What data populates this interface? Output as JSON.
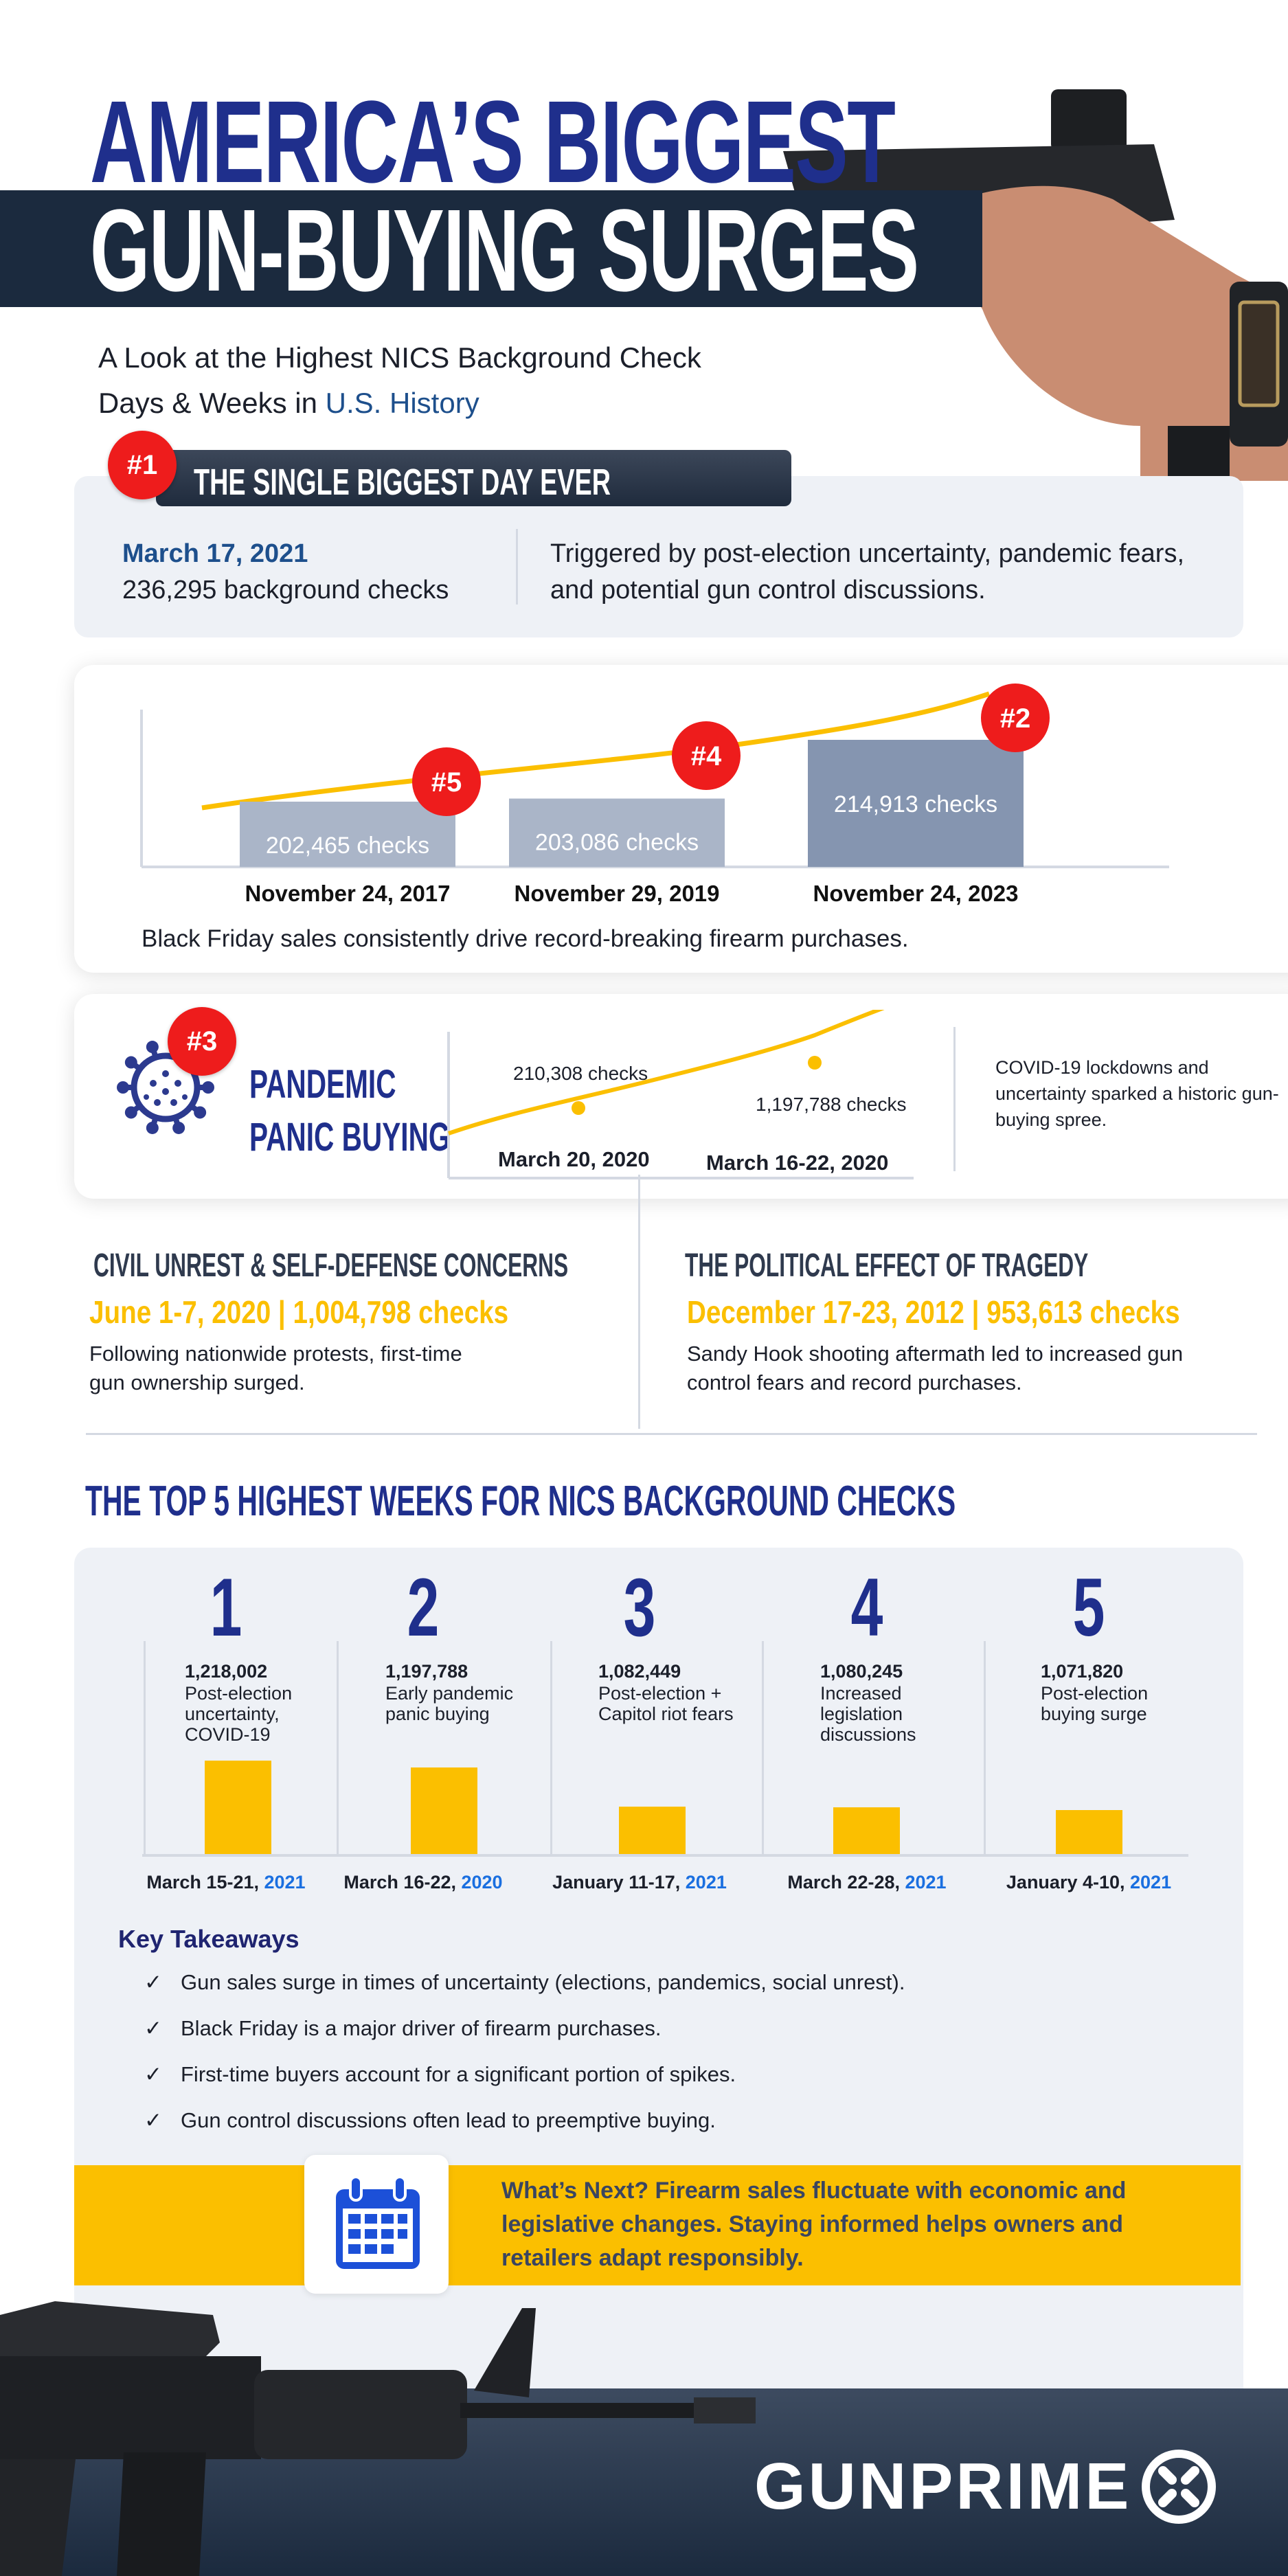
{
  "header": {
    "title_line1": "AMERICA’S BIGGEST",
    "title_line2": "GUN-BUYING SURGES",
    "subtitle_part1": "A Look at the Highest NICS Background Check",
    "subtitle_part2": "Days & Weeks in ",
    "subtitle_highlight": "U.S. History"
  },
  "biggest_day": {
    "badge": "#1",
    "heading": "THE SINGLE BIGGEST DAY EVER",
    "date": "March 17, 2021",
    "checks": "236,295 background checks",
    "description": "Triggered by post-election uncertainty, pandemic fears, and potential gun control discussions."
  },
  "black_friday": {
    "chart_data": {
      "type": "bar",
      "categories": [
        "November 24, 2017",
        "November 29, 2019",
        "November 24, 2023"
      ],
      "values": [
        202465,
        203086,
        214913
      ],
      "labels": [
        "202,465  checks",
        "203,086 checks",
        "214,913 checks"
      ],
      "ranks": [
        "#5",
        "#4",
        "#2"
      ]
    },
    "caption": "Black Friday sales consistently drive record-breaking firearm purchases."
  },
  "pandemic": {
    "badge": "#3",
    "title_line1": "PANDEMIC",
    "title_line2": "PANIC BUYING",
    "chart_data": {
      "type": "line",
      "points": [
        {
          "label": "March 20, 2020",
          "value_text": "210,308 checks"
        },
        {
          "label": "March 16-22, 2020",
          "value_text": "1,197,788 checks"
        }
      ]
    },
    "description": "COVID-19 lockdowns and uncertainty sparked a historic gun-buying spree."
  },
  "civil_unrest": {
    "heading": "CIVIL UNREST & SELF-DEFENSE CONCERNS",
    "stat": "June 1-7, 2020 | 1,004,798 checks",
    "body": "Following nationwide protests, first-time gun ownership surged."
  },
  "tragedy": {
    "heading": "THE POLITICAL EFFECT OF TRAGEDY",
    "stat": "December 17-23, 2012 | 953,613 checks",
    "body": "Sandy Hook shooting aftermath led to increased gun control fears and record purchases."
  },
  "top5": {
    "heading": "THE TOP 5 HIGHEST WEEKS FOR NICS BACKGROUND CHECKS",
    "chart_data": {
      "type": "bar",
      "weeks": [
        {
          "rank": "1",
          "value": 1218002,
          "value_text": "1,218,002",
          "reason": "Post-election uncertainty, COVID-19",
          "dates": "March 15-21, ",
          "year": "2021"
        },
        {
          "rank": "2",
          "value": 1197788,
          "value_text": "1,197,788",
          "reason": "Early pandemic panic buying",
          "dates": "March 16-22, ",
          "year": "2020"
        },
        {
          "rank": "3",
          "value": 1082449,
          "value_text": "1,082,449",
          "reason": "Post-election + Capitol riot fears",
          "dates": "January 11-17, ",
          "year": "2021"
        },
        {
          "rank": "4",
          "value": 1080245,
          "value_text": "1,080,245",
          "reason": "Increased legislation discussions",
          "dates": "March 22-28, ",
          "year": "2021"
        },
        {
          "rank": "5",
          "value": 1071820,
          "value_text": "1,071,820",
          "reason": "Post-election buying surge",
          "dates": "January 4-10, ",
          "year": "2021"
        }
      ]
    }
  },
  "takeaways": {
    "heading": "Key Takeaways",
    "items": [
      "Gun sales surge in times of uncertainty (elections, pandemics, social unrest).",
      "Black Friday is a major driver of firearm purchases.",
      "First-time buyers account for a significant portion of spikes.",
      "Gun control discussions often lead to preemptive buying."
    ]
  },
  "whats_next": {
    "text": "What’s Next? Firearm sales fluctuate with economic and legislative changes. Staying informed helps owners and retailers adapt responsibly."
  },
  "footer": {
    "logo": "GUNPRIME"
  },
  "colors": {
    "navy": "#1f2f8c",
    "dark_band": "#1b2a3e",
    "red": "#ee1c1c",
    "yellow": "#fbbf00",
    "gray_panel": "#eef1f6",
    "blue_year": "#1a6fe0"
  }
}
